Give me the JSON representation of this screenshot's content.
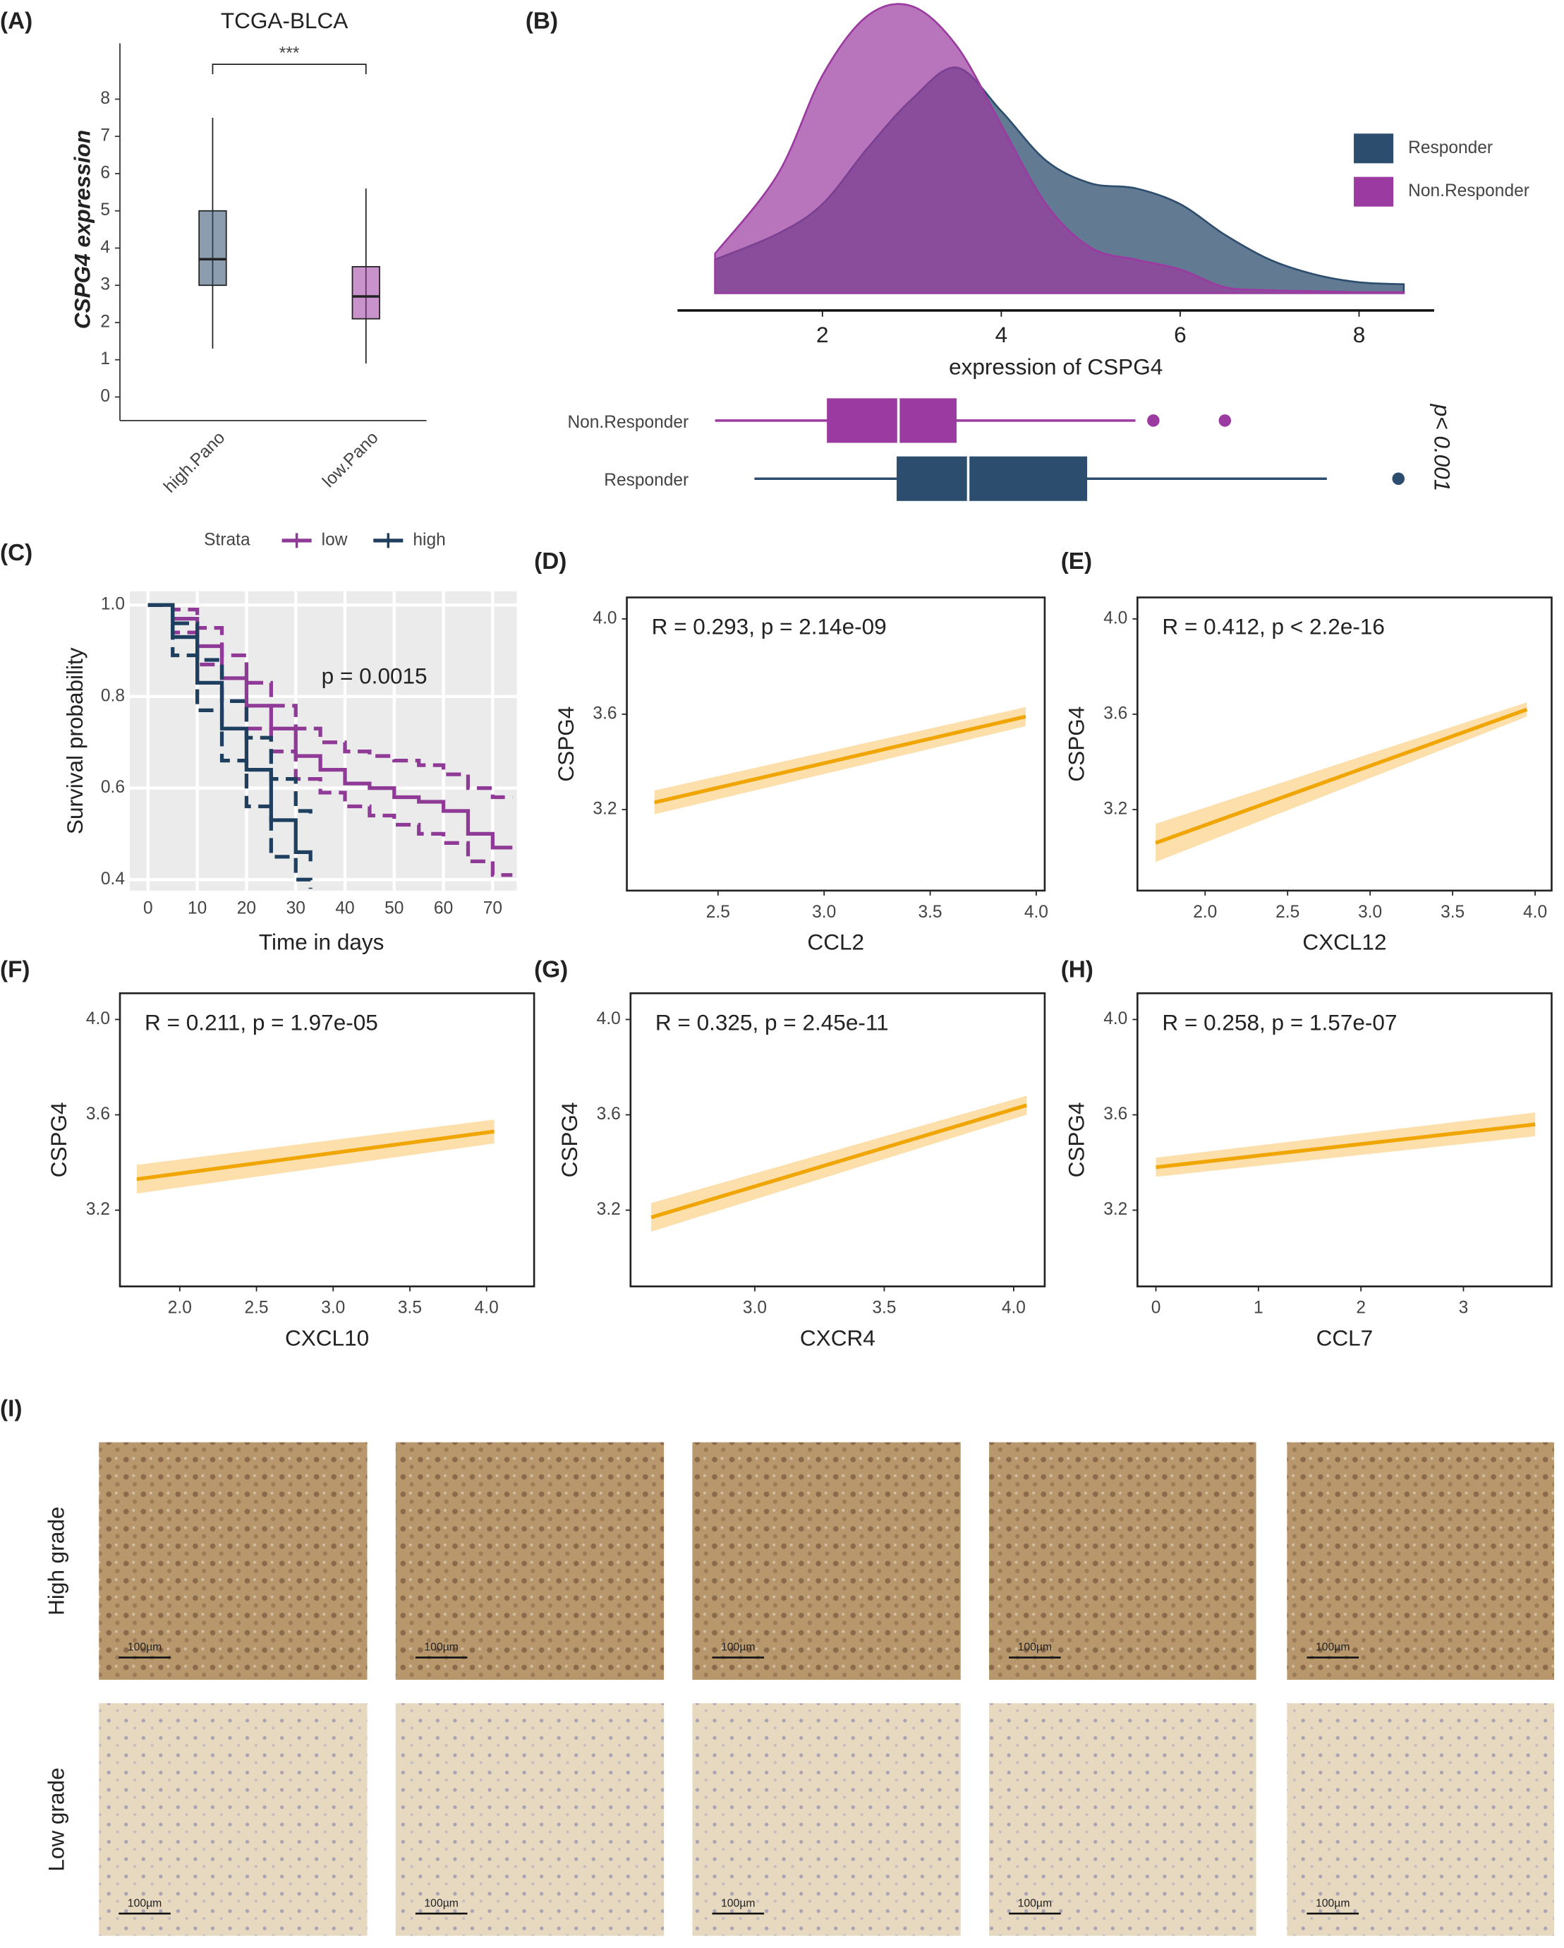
{
  "panel_labels": [
    "(A)",
    "(B)",
    "(C)",
    "(D)",
    "(E)",
    "(F)",
    "(G)",
    "(H)",
    "(I)"
  ],
  "chart_data": [
    {
      "type": "box",
      "title": "TCGA-BLCA",
      "ylabel": "CSPG4 expression",
      "categories": [
        "high.Pano",
        "low.Pano"
      ],
      "colors": [
        "#2d4d6e",
        "#9b3aa0"
      ],
      "ylim": [
        -0.5,
        9.5
      ],
      "yticks": [
        0,
        1,
        2,
        3,
        4,
        5,
        6,
        7,
        8
      ],
      "boxes": [
        {
          "whislo": 1.3,
          "q1": 3.0,
          "med": 3.7,
          "q3": 5.0,
          "whishi": 7.5
        },
        {
          "whislo": 0.9,
          "q1": 2.1,
          "med": 2.7,
          "q3": 3.5,
          "whishi": 5.6
        }
      ],
      "annotation": "***"
    },
    {
      "type": "density",
      "xlabel": "expression of CSPG4",
      "xlim": [
        0.38,
        8.84
      ],
      "xticks": [
        2,
        4,
        6,
        8
      ],
      "ylim": [
        0,
        0.3
      ],
      "x": [
        0.8,
        1.5,
        2.0,
        2.5,
        3.0,
        3.5,
        4.0,
        4.5,
        5.0,
        5.5,
        6.0,
        6.5,
        7.0,
        7.5,
        8.0,
        8.5
      ],
      "series": [
        {
          "name": "Responder",
          "color": "#2d4d6e",
          "values": [
            0.034,
            0.06,
            0.09,
            0.146,
            0.196,
            0.228,
            0.184,
            0.134,
            0.111,
            0.106,
            0.09,
            0.059,
            0.034,
            0.019,
            0.011,
            0.009
          ]
        },
        {
          "name": "Non.Responder",
          "color": "#9b3aa0",
          "values": [
            0.04,
            0.12,
            0.22,
            0.28,
            0.29,
            0.25,
            0.17,
            0.09,
            0.046,
            0.034,
            0.024,
            0.006,
            0.003,
            0.002,
            0.001,
            0.001
          ]
        }
      ],
      "legend": "right",
      "boxplots": [
        {
          "name": "Non.Responder",
          "color": "#9b3aa0",
          "whislo": 0.8,
          "q1": 2.05,
          "med": 2.85,
          "q3": 3.5,
          "whishi": 5.5,
          "outliers": [
            5.7,
            6.5
          ]
        },
        {
          "name": "Responder",
          "color": "#2d4d6e",
          "whislo": 1.24,
          "q1": 2.83,
          "med": 3.63,
          "q3": 4.96,
          "whishi": 7.64,
          "outliers": [
            8.44
          ]
        }
      ],
      "annotation": "p< 0.001"
    },
    {
      "type": "survival",
      "xlabel": "Time in days",
      "ylabel": "Survival probability",
      "legend_title": "Strata",
      "legend": "top",
      "annotation": "p = 0.0015",
      "grid": true,
      "xlim": [
        -3.7,
        74.9
      ],
      "ylim": [
        0.376,
        1.03
      ],
      "xticks": [
        0,
        10,
        20,
        30,
        40,
        50,
        60,
        70
      ],
      "yticks": [
        0.4,
        0.6,
        0.8,
        {
          "value": 1,
          "label": "1.0"
        }
      ],
      "series": [
        {
          "name": "low",
          "color": "#8e3a96",
          "x": [
            0,
            5,
            10,
            15,
            20,
            25,
            30,
            35,
            40,
            45,
            50,
            55,
            60,
            65,
            70,
            74
          ],
          "values": [
            1,
            0.97,
            0.91,
            0.84,
            0.78,
            0.73,
            0.67,
            0.64,
            0.61,
            0.6,
            0.58,
            0.57,
            0.55,
            0.5,
            0.47,
            0.47
          ],
          "ci_upper": [
            1,
            0.99,
            0.95,
            0.89,
            0.83,
            0.78,
            0.73,
            0.7,
            0.68,
            0.67,
            0.66,
            0.65,
            0.63,
            0.6,
            0.58,
            0.58
          ],
          "ci_lower": [
            1,
            0.94,
            0.87,
            0.79,
            0.73,
            0.68,
            0.62,
            0.59,
            0.56,
            0.54,
            0.52,
            0.5,
            0.48,
            0.44,
            0.41,
            0.41
          ]
        },
        {
          "name": "high",
          "color": "#1f3f5f",
          "x": [
            0,
            5,
            10,
            15,
            20,
            25,
            30,
            33
          ],
          "values": [
            1,
            0.93,
            0.83,
            0.73,
            0.64,
            0.53,
            0.46,
            0.44
          ],
          "ci_upper": [
            1,
            0.96,
            0.88,
            0.79,
            0.71,
            0.62,
            0.55,
            0.53
          ],
          "ci_lower": [
            1,
            0.89,
            0.77,
            0.66,
            0.56,
            0.45,
            0.4,
            0.38
          ]
        }
      ]
    },
    {
      "type": "scatter",
      "xlabel": "CCL2",
      "ylabel": "CSPG4",
      "annotation": "R = 0.293, p = 2.14e-09",
      "xlim": [
        2.07,
        4.04
      ],
      "ylim": [
        2.86,
        4.09
      ],
      "xticks": [
        2.5,
        {
          "value": 3,
          "label": "3.0"
        },
        3.5,
        {
          "value": 4,
          "label": "4.0"
        }
      ],
      "yticks": [
        3.2,
        3.6,
        {
          "value": 4,
          "label": "4.0"
        }
      ],
      "fit_x": [
        2.2,
        3.95
      ],
      "fit_y": [
        3.23,
        3.59
      ],
      "fit_lower": [
        3.18,
        3.55
      ],
      "fit_upper": [
        3.28,
        3.63
      ]
    },
    {
      "type": "scatter",
      "xlabel": "CXCL12",
      "ylabel": "CSPG4",
      "annotation": "R = 0.412, p < 2.2e-16",
      "xlim": [
        1.59,
        4.1
      ],
      "ylim": [
        2.86,
        4.09
      ],
      "xticks": [
        {
          "value": 2,
          "label": "2.0"
        },
        2.5,
        {
          "value": 3,
          "label": "3.0"
        },
        3.5,
        {
          "value": 4,
          "label": "4.0"
        }
      ],
      "yticks": [
        3.2,
        3.6,
        {
          "value": 4,
          "label": "4.0"
        }
      ],
      "fit_x": [
        1.7,
        3.95
      ],
      "fit_y": [
        3.06,
        3.62
      ],
      "fit_lower": [
        2.98,
        3.59
      ],
      "fit_upper": [
        3.14,
        3.65
      ]
    },
    {
      "type": "scatter",
      "xlabel": "CXCL10",
      "ylabel": "CSPG4",
      "annotation": "R = 0.211, p = 1.97e-05",
      "xlim": [
        1.61,
        4.31
      ],
      "ylim": [
        2.88,
        4.11
      ],
      "xticks": [
        {
          "value": 2,
          "label": "2.0"
        },
        2.5,
        {
          "value": 3,
          "label": "3.0"
        },
        3.5,
        {
          "value": 4,
          "label": "4.0"
        }
      ],
      "yticks": [
        3.2,
        3.6,
        {
          "value": 4,
          "label": "4.0"
        }
      ],
      "fit_x": [
        1.72,
        4.05
      ],
      "fit_y": [
        3.33,
        3.53
      ],
      "fit_lower": [
        3.27,
        3.48
      ],
      "fit_upper": [
        3.39,
        3.58
      ]
    },
    {
      "type": "scatter",
      "xlabel": "CXCR4",
      "ylabel": "CSPG4",
      "annotation": "R = 0.325, p = 2.45e-11",
      "xlim": [
        2.52,
        4.12
      ],
      "ylim": [
        2.88,
        4.11
      ],
      "xticks": [
        {
          "value": 3,
          "label": "3.0"
        },
        3.5,
        {
          "value": 4,
          "label": "4.0"
        }
      ],
      "yticks": [
        3.2,
        3.6,
        {
          "value": 4,
          "label": "4.0"
        }
      ],
      "fit_x": [
        2.6,
        4.05
      ],
      "fit_y": [
        3.17,
        3.64
      ],
      "fit_lower": [
        3.11,
        3.6
      ],
      "fit_upper": [
        3.23,
        3.68
      ]
    },
    {
      "type": "scatter",
      "xlabel": "CCL7",
      "ylabel": "CSPG4",
      "annotation": "R = 0.258, p = 1.57e-07",
      "xlim": [
        -0.18,
        3.86
      ],
      "ylim": [
        2.88,
        4.11
      ],
      "xticks": [
        0,
        1,
        2,
        3
      ],
      "yticks": [
        3.2,
        3.6,
        {
          "value": 4,
          "label": "4.0"
        }
      ],
      "fit_x": [
        0,
        3.7
      ],
      "fit_y": [
        3.38,
        3.56
      ],
      "fit_lower": [
        3.34,
        3.51
      ],
      "fit_upper": [
        3.42,
        3.61
      ]
    }
  ],
  "histology": {
    "rows": [
      "High grade",
      "Low grade"
    ],
    "scale_bar": "100µm"
  }
}
